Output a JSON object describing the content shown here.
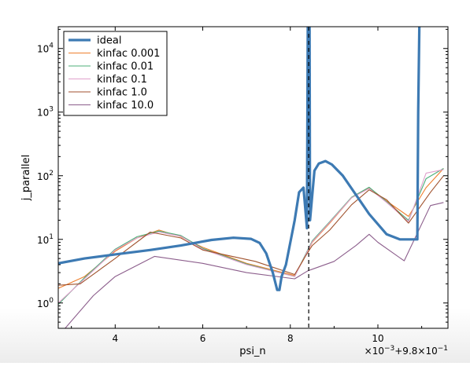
{
  "chart_data": {
    "type": "line",
    "xlabel": "psi_n",
    "ylabel": "j_parallel",
    "offset_label_parts": [
      "×10",
      "−3",
      "+9.8×10",
      "−1"
    ],
    "xlim": [
      2.7,
      11.6
    ],
    "ylim": [
      0.4,
      22000
    ],
    "yscale": "log",
    "x_ticks": [
      4,
      6,
      8,
      10
    ],
    "x_tick_labels": [
      "4",
      "6",
      "8",
      "10"
    ],
    "y_ticks": [
      1,
      10,
      100,
      1000,
      10000
    ],
    "y_tick_labels": [
      {
        "base": "10",
        "exp": "0"
      },
      {
        "base": "10",
        "exp": "1"
      },
      {
        "base": "10",
        "exp": "2"
      },
      {
        "base": "10",
        "exp": "3"
      },
      {
        "base": "10",
        "exp": "4"
      }
    ],
    "x_axis_note": "x values are ×10^-3 offsets from 9.8×10^-1",
    "vline": {
      "x": 8.42,
      "style": "dashed",
      "color": "#000000"
    },
    "legend_position": "top-left",
    "series": [
      {
        "name": "ideal",
        "color": "#3d7ab3",
        "width": 3.2,
        "x": [
          2.7,
          3.3,
          4.0,
          4.8,
          5.5,
          6.2,
          6.7,
          7.1,
          7.3,
          7.45,
          7.6,
          7.7,
          7.75,
          7.8,
          7.9,
          8.1,
          8.2,
          8.3,
          8.38,
          8.4,
          8.42,
          8.44,
          8.45,
          8.55,
          8.65,
          8.8,
          8.95,
          9.2,
          9.5,
          9.8,
          10.2,
          10.5,
          10.8,
          10.9,
          10.92,
          10.95
        ],
        "y": [
          4.2,
          5.0,
          5.8,
          6.8,
          8.0,
          9.8,
          10.6,
          10.2,
          8.8,
          6.0,
          3.0,
          1.6,
          1.6,
          2.6,
          4.0,
          20.0,
          55.0,
          65.0,
          15.0,
          30000,
          30000,
          30000,
          20.0,
          120.0,
          155.0,
          170.0,
          150.0,
          100.0,
          50.0,
          25.0,
          12.0,
          10.0,
          10.0,
          10.0,
          1000.0,
          30000
        ]
      },
      {
        "name": "kinfac 0.001",
        "color": "#ee7f2d",
        "width": 1.1,
        "x": [
          2.7,
          3.3,
          4.0,
          4.5,
          5.0,
          5.5,
          6.0,
          7.0,
          8.1,
          8.3,
          8.5,
          8.9,
          9.4,
          9.8,
          10.2,
          10.7,
          11.1,
          11.5
        ],
        "y": [
          1.7,
          2.6,
          6.5,
          10.5,
          14.0,
          11.0,
          7.5,
          4.2,
          2.7,
          4.8,
          9.0,
          18.0,
          45.0,
          65.0,
          40.0,
          23.0,
          65.0,
          130.0
        ]
      },
      {
        "name": "kinfac 0.01",
        "color": "#4caf7a",
        "width": 1.1,
        "x": [
          2.7,
          3.3,
          4.0,
          4.5,
          5.0,
          5.5,
          6.0,
          7.0,
          8.1,
          8.3,
          8.5,
          8.9,
          9.4,
          9.8,
          10.2,
          10.7,
          11.1,
          11.5
        ],
        "y": [
          0.95,
          2.5,
          7.0,
          11.0,
          13.5,
          11.5,
          7.2,
          4.1,
          2.6,
          5.0,
          9.5,
          19.0,
          46.0,
          66.0,
          39.0,
          20.0,
          90.0,
          130.0
        ]
      },
      {
        "name": "kinfac 0.1",
        "color": "#e0a0cc",
        "width": 1.1,
        "x": [
          2.7,
          3.3,
          4.0,
          4.5,
          5.0,
          5.5,
          6.0,
          7.0,
          8.1,
          8.3,
          8.5,
          8.9,
          9.4,
          9.8,
          10.2,
          10.7,
          11.1,
          11.5
        ],
        "y": [
          1.0,
          2.4,
          6.8,
          10.5,
          13.0,
          11.2,
          7.0,
          4.0,
          2.6,
          4.9,
          9.2,
          18.5,
          45.0,
          63.0,
          38.0,
          19.0,
          110.0,
          125.0
        ]
      },
      {
        "name": "kinfac 1.0",
        "color": "#a0522d",
        "width": 1.1,
        "x": [
          2.7,
          3.2,
          4.0,
          4.8,
          5.5,
          6.0,
          7.2,
          8.1,
          8.35,
          8.5,
          8.9,
          9.4,
          9.8,
          10.2,
          10.7,
          11.2,
          11.5
        ],
        "y": [
          1.9,
          2.0,
          5.0,
          13.0,
          10.5,
          6.8,
          4.5,
          2.8,
          5.5,
          8.0,
          14.0,
          35.0,
          60.0,
          42.0,
          18.0,
          55.0,
          100.0
        ]
      },
      {
        "name": "kinfac 10.0",
        "color": "#8c5e8c",
        "width": 1.1,
        "x": [
          2.7,
          3.5,
          4.0,
          4.9,
          6.0,
          7.0,
          8.1,
          8.4,
          9.0,
          9.5,
          9.8,
          10.0,
          10.6,
          11.2,
          11.5
        ],
        "y": [
          0.3,
          1.3,
          2.6,
          5.4,
          4.2,
          3.0,
          2.4,
          3.2,
          4.5,
          8.0,
          12.0,
          9.0,
          4.6,
          34.0,
          38.0
        ]
      }
    ]
  }
}
